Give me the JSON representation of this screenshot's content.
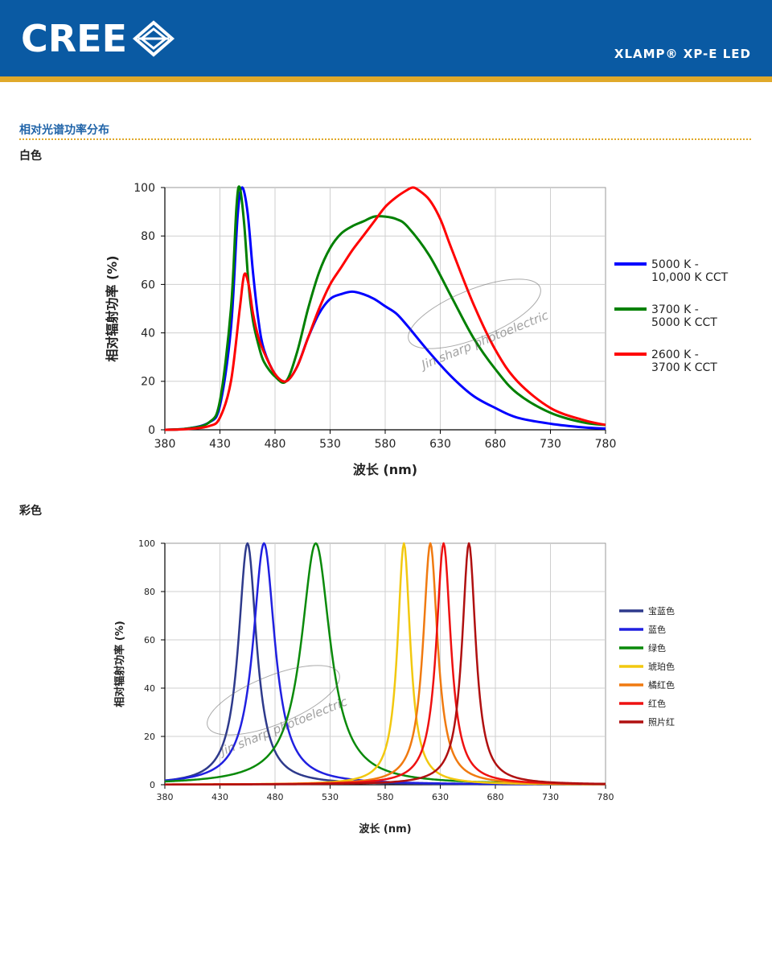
{
  "header": {
    "logo_text": "CREE",
    "logo_mark_icon": "cree-diamond-icon",
    "product": "XLAMP® XP-E LED",
    "colors": {
      "banner": "#0a5aa3",
      "stripe": "#e0a92a"
    }
  },
  "section": {
    "title": "相对光谱功率分布"
  },
  "white": {
    "title": "白色"
  },
  "color": {
    "title": "彩色"
  },
  "watermark": {
    "text": "Jin sharp photoelectric"
  },
  "chart_data": [
    {
      "type": "line",
      "title": "",
      "xlabel": "波长 (nm)",
      "ylabel": "相对辐射功率 (%)",
      "xlim": [
        380,
        780
      ],
      "ylim": [
        0,
        100
      ],
      "xticks": [
        380,
        430,
        480,
        530,
        580,
        630,
        680,
        730,
        780
      ],
      "yticks": [
        0,
        20,
        40,
        60,
        80,
        100
      ],
      "grid": true,
      "legend_position": "right",
      "series": [
        {
          "name": "5000 K - 10,000 K CCT",
          "color": "#0000ff",
          "x": [
            380,
            400,
            420,
            430,
            440,
            446,
            450,
            455,
            460,
            465,
            470,
            480,
            490,
            500,
            510,
            520,
            530,
            540,
            550,
            560,
            570,
            580,
            590,
            600,
            620,
            640,
            660,
            680,
            700,
            730,
            760,
            780
          ],
          "y": [
            0,
            0.5,
            3,
            10,
            42,
            88,
            100,
            90,
            65,
            45,
            33,
            23,
            20,
            26,
            38,
            48,
            54,
            56,
            57,
            56,
            54,
            51,
            48,
            43,
            32,
            22,
            14,
            9,
            5,
            2.5,
            1,
            0.5
          ]
        },
        {
          "name": "3700 K - 5000 K CCT",
          "color": "#008000",
          "x": [
            380,
            400,
            420,
            430,
            440,
            445,
            448,
            452,
            456,
            460,
            465,
            470,
            480,
            490,
            500,
            510,
            520,
            530,
            540,
            550,
            560,
            570,
            580,
            590,
            600,
            620,
            640,
            660,
            680,
            700,
            730,
            760,
            780
          ],
          "y": [
            0,
            0.5,
            3,
            12,
            50,
            92,
            100,
            85,
            60,
            45,
            35,
            28,
            22,
            20,
            32,
            50,
            65,
            75,
            81,
            84,
            86,
            88,
            88,
            87,
            84,
            72,
            55,
            38,
            25,
            15,
            7,
            3,
            2
          ]
        },
        {
          "name": "2600 K - 3700 K CCT",
          "color": "#ff0000",
          "x": [
            380,
            400,
            420,
            430,
            440,
            448,
            452,
            456,
            460,
            465,
            470,
            480,
            490,
            500,
            510,
            520,
            530,
            540,
            550,
            560,
            570,
            580,
            590,
            600,
            605,
            610,
            620,
            630,
            640,
            660,
            680,
            700,
            730,
            760,
            780
          ],
          "y": [
            0,
            0.3,
            1.5,
            5,
            20,
            50,
            64,
            60,
            48,
            38,
            32,
            23,
            20,
            26,
            38,
            50,
            60,
            67,
            74,
            80,
            86,
            92,
            96,
            99,
            100,
            99,
            95,
            87,
            75,
            52,
            33,
            20,
            9,
            4,
            2
          ]
        }
      ]
    },
    {
      "type": "line",
      "title": "",
      "xlabel": "波长 (nm)",
      "ylabel": "相对辐射功率 (%)",
      "xlim": [
        380,
        780
      ],
      "ylim": [
        0,
        100
      ],
      "xticks": [
        380,
        430,
        480,
        530,
        580,
        630,
        680,
        730,
        780
      ],
      "yticks": [
        0,
        20,
        40,
        60,
        80,
        100
      ],
      "grid": true,
      "legend_position": "right",
      "series": [
        {
          "name": "宝蓝色",
          "color": "#2e3a8c",
          "peak": 455,
          "fwhm": 20,
          "shape": "lorentz"
        },
        {
          "name": "蓝色",
          "color": "#2020e0",
          "peak": 470,
          "fwhm": 24,
          "shape": "lorentz"
        },
        {
          "name": "绿色",
          "color": "#0a8a0a",
          "peak": 517,
          "fwhm": 32,
          "shape": "lorentz"
        },
        {
          "name": "琥珀色",
          "color": "#f2c80f",
          "peak": 597,
          "fwhm": 14,
          "shape": "lorentz"
        },
        {
          "name": "橘红色",
          "color": "#f07a10",
          "peak": 621,
          "fwhm": 16,
          "shape": "lorentz"
        },
        {
          "name": "红色",
          "color": "#ee1111",
          "peak": 633,
          "fwhm": 16,
          "shape": "lorentz"
        },
        {
          "name": "照片红",
          "color": "#b01010",
          "peak": 656,
          "fwhm": 15,
          "shape": "lorentz"
        }
      ]
    }
  ]
}
